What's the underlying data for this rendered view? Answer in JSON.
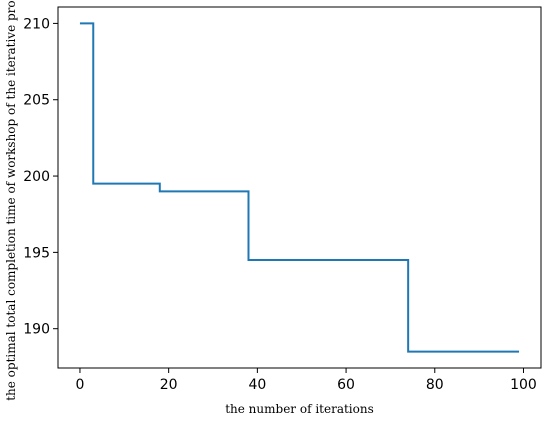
{
  "chart_data": {
    "type": "line",
    "xlabel": "the number of iterations",
    "ylabel": "the optimal total completion time of workshop of the iterative process",
    "xlim": [
      -4.95,
      103.95
    ],
    "ylim": [
      187.425,
      211.075
    ],
    "xticks": [
      0,
      20,
      40,
      60,
      80,
      100
    ],
    "yticks": [
      190,
      195,
      200,
      205,
      210
    ],
    "grid": false,
    "line_color": "#1f77b4",
    "series": [
      {
        "step": "post",
        "x": [
          0,
          2,
          3,
          17,
          18,
          37,
          38,
          73,
          74,
          99
        ],
        "y": [
          210,
          210,
          199.5,
          199.5,
          199,
          199,
          194.5,
          194.5,
          188.5,
          188.5
        ]
      }
    ]
  }
}
